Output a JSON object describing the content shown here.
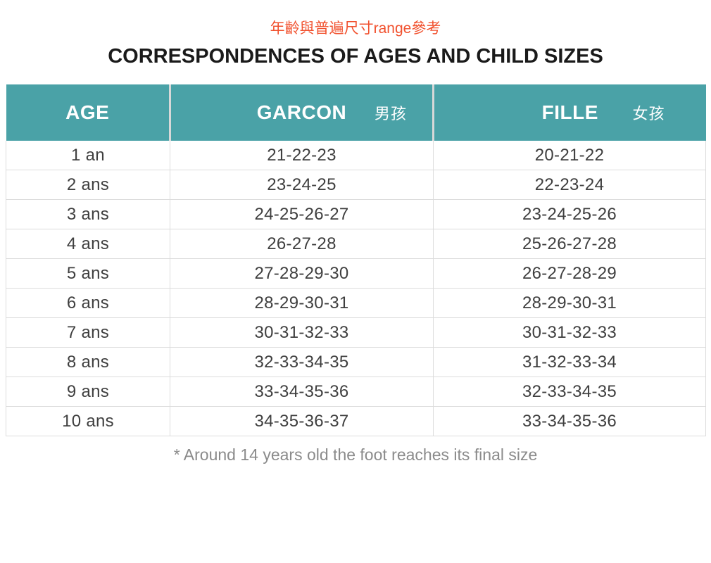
{
  "chart_data": {
    "type": "table",
    "subtitle": "年齡與普遍尺寸range參考",
    "title": "CORRESPONDENCES OF AGES AND CHILD SIZES",
    "columns": [
      {
        "label": "AGE",
        "label_zh": ""
      },
      {
        "label": "GARCON",
        "label_zh": "男孩"
      },
      {
        "label": "FILLE",
        "label_zh": "女孩"
      }
    ],
    "rows": [
      {
        "age": "1 an",
        "garcon": "21-22-23",
        "fille": "20-21-22"
      },
      {
        "age": "2 ans",
        "garcon": "23-24-25",
        "fille": "22-23-24"
      },
      {
        "age": "3 ans",
        "garcon": "24-25-26-27",
        "fille": "23-24-25-26"
      },
      {
        "age": "4 ans",
        "garcon": "26-27-28",
        "fille": "25-26-27-28"
      },
      {
        "age": "5 ans",
        "garcon": "27-28-29-30",
        "fille": "26-27-28-29"
      },
      {
        "age": "6 ans",
        "garcon": "28-29-30-31",
        "fille": "28-29-30-31"
      },
      {
        "age": "7 ans",
        "garcon": "30-31-32-33",
        "fille": "30-31-32-33"
      },
      {
        "age": "8 ans",
        "garcon": "32-33-34-35",
        "fille": "31-32-33-34"
      },
      {
        "age": "9 ans",
        "garcon": "33-34-35-36",
        "fille": "32-33-34-35"
      },
      {
        "age": "10 ans",
        "garcon": "34-35-36-37",
        "fille": "33-34-35-36"
      }
    ],
    "footnote": "* Around 14 years old the foot reaches its final size",
    "legend_position": "none",
    "grid": true
  },
  "colors": {
    "header_bg": "#4AA2A7",
    "header_text": "#FFFFFF",
    "header_divider": "#D8D8D8",
    "subtitle": "#F1512E",
    "title": "#1A1A1A",
    "cell_text": "#3F3F3F",
    "border": "#DCDCDC",
    "footnote": "#8B8B8B",
    "background": "#FFFFFF"
  }
}
